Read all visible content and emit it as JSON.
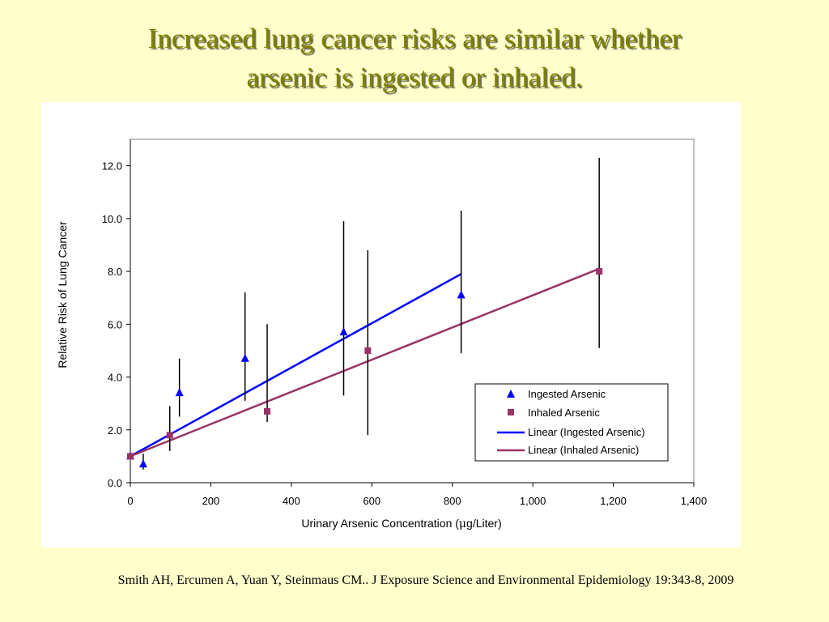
{
  "slide": {
    "title_line1": "Increased lung cancer risks are similar whether",
    "title_line2": "arsenic is ingested or inhaled.",
    "citation": "Smith AH, Ercumen A, Yuan Y, Steinmaus CM.. J Exposure Science and Environmental Epidemiology 19:343-8, 2009",
    "background": "#ffffcc",
    "title_color": "#808000"
  },
  "chart_data": {
    "type": "scatter",
    "xlabel_prefix": "Urinary Arsenic Concentration (",
    "xlabel_mu": "μ",
    "xlabel_suffix": "g/Liter)",
    "ylabel": "Relative Risk of Lung Cancer",
    "xlim": [
      0,
      1400
    ],
    "ylim": [
      0,
      13
    ],
    "x_ticks": [
      0,
      200,
      400,
      600,
      800,
      1000,
      1200,
      1400
    ],
    "x_tick_labels": [
      "0",
      "200",
      "400",
      "600",
      "800",
      "1,000",
      "1,200",
      "1,400"
    ],
    "y_ticks": [
      0,
      2,
      4,
      6,
      8,
      10,
      12
    ],
    "y_tick_labels": [
      "0.0",
      "2.0",
      "4.0",
      "6.0",
      "8.0",
      "10.0",
      "12.0"
    ],
    "grid": false,
    "legend_position": "bottom-right",
    "series": [
      {
        "name": "Ingested Arsenic",
        "marker": "triangle",
        "color": "#0000ff",
        "points": [
          {
            "x": 0,
            "y": 1.0,
            "lo": 1.0,
            "hi": 1.0
          },
          {
            "x": 32,
            "y": 0.7,
            "lo": 0.5,
            "hi": 1.1
          },
          {
            "x": 122,
            "y": 3.4,
            "lo": 2.5,
            "hi": 4.7
          },
          {
            "x": 285,
            "y": 4.7,
            "lo": 3.1,
            "hi": 7.2
          },
          {
            "x": 530,
            "y": 5.7,
            "lo": 3.3,
            "hi": 9.9
          },
          {
            "x": 822,
            "y": 7.1,
            "lo": 4.9,
            "hi": 10.3
          }
        ]
      },
      {
        "name": "Inhaled Arsenic",
        "marker": "square",
        "color": "#993366",
        "points": [
          {
            "x": 0,
            "y": 1.0,
            "lo": 1.0,
            "hi": 1.0
          },
          {
            "x": 98,
            "y": 1.8,
            "lo": 1.2,
            "hi": 2.9
          },
          {
            "x": 340,
            "y": 2.7,
            "lo": 2.3,
            "hi": 6.0
          },
          {
            "x": 590,
            "y": 5.0,
            "lo": 1.8,
            "hi": 8.8
          },
          {
            "x": 1165,
            "y": 8.0,
            "lo": 5.1,
            "hi": 12.3
          }
        ]
      }
    ],
    "trendlines": [
      {
        "name": "Linear (Ingested Arsenic)",
        "color": "#0000ff",
        "x": [
          0,
          822
        ],
        "y": [
          1.0,
          7.9
        ]
      },
      {
        "name": "Linear (Inhaled Arsenic)",
        "color": "#993366",
        "x": [
          0,
          1165
        ],
        "y": [
          1.0,
          8.1
        ]
      }
    ]
  }
}
